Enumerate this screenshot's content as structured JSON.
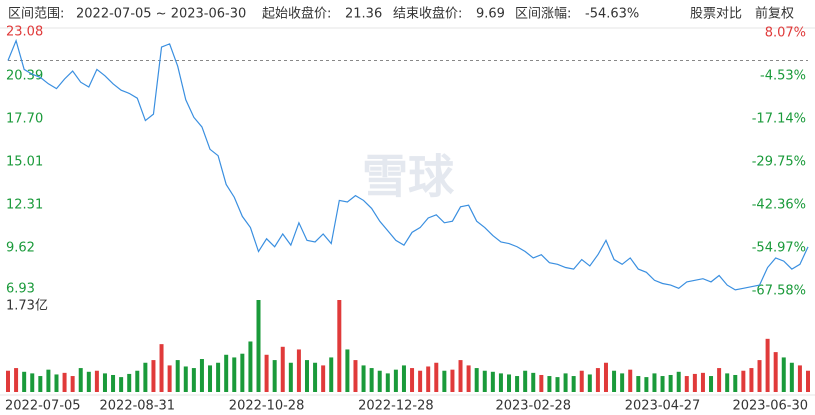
{
  "header": {
    "range_label": "区间范围:",
    "range": "2022-07-05 ~ 2023-06-30",
    "start_label": "起始收盘价:",
    "start_close": 21.36,
    "end_label": "结束收盘价:",
    "end_close": 9.69,
    "change_label": "区间涨幅:",
    "change": "-54.63%",
    "buttons": [
      "股票对比",
      "前复权"
    ]
  },
  "watermark": "雪球",
  "chart_data": [
    {
      "type": "line",
      "up_color": "#e03a3a",
      "down_color": "#1a9a3a",
      "series": [
        {
          "name": "收盘价",
          "color": "#3a8fe0",
          "values": [
            21.36,
            22.6,
            20.8,
            20.5,
            20.3,
            19.9,
            19.6,
            20.2,
            20.7,
            20.0,
            19.7,
            20.8,
            20.4,
            19.9,
            19.5,
            19.3,
            19.0,
            17.6,
            18.0,
            22.2,
            22.4,
            21.0,
            18.9,
            17.8,
            17.2,
            15.8,
            15.4,
            13.6,
            12.8,
            11.6,
            10.9,
            9.4,
            10.2,
            9.7,
            10.5,
            9.8,
            11.2,
            10.1,
            10.0,
            10.5,
            9.9,
            12.6,
            12.5,
            12.9,
            12.6,
            12.1,
            11.3,
            10.7,
            10.1,
            9.8,
            10.6,
            10.9,
            11.5,
            11.7,
            11.2,
            11.3,
            12.2,
            12.3,
            11.3,
            10.9,
            10.4,
            10.0,
            9.9,
            9.7,
            9.4,
            9.0,
            9.2,
            8.7,
            8.6,
            8.4,
            8.3,
            8.9,
            8.5,
            9.2,
            10.1,
            8.9,
            8.6,
            9.0,
            8.3,
            8.1,
            7.6,
            7.4,
            7.3,
            7.1,
            7.5,
            7.6,
            7.7,
            7.5,
            7.9,
            7.3,
            7.0,
            7.1,
            7.2,
            7.3,
            8.4,
            9.0,
            8.8,
            8.3,
            8.6,
            9.69
          ]
        }
      ],
      "ylim": [
        6.93,
        23.08
      ],
      "yticks": [
        23.08,
        20.39,
        17.7,
        15.01,
        12.31,
        9.62,
        6.93
      ],
      "yticks_labels": [
        "23.08",
        "20.39",
        "17.70",
        "15.01",
        "12.31",
        "9.62",
        "6.93"
      ],
      "y2lim": [
        -67.58,
        8.07
      ],
      "y2ticks": [
        {
          "value": 8.07,
          "label": "8.07%"
        },
        {
          "value": -4.53,
          "label": "-4.53%"
        },
        {
          "value": -17.14,
          "label": "-17.14%"
        },
        {
          "value": -29.75,
          "label": "-29.75%"
        },
        {
          "value": -42.36,
          "label": "-42.36%"
        },
        {
          "value": -54.97,
          "label": "-54.97%"
        },
        {
          "value": -67.58,
          "label": "-67.58%"
        }
      ],
      "xlim": [
        0,
        99
      ],
      "xticks": [
        {
          "value": 0,
          "label": "2022-07-05"
        },
        {
          "value": 16,
          "label": "2022-08-31"
        },
        {
          "value": 32,
          "label": "2022-10-28"
        },
        {
          "value": 48,
          "label": "2022-12-28"
        },
        {
          "value": 65,
          "label": "2023-02-28"
        },
        {
          "value": 81,
          "label": "2023-04-27"
        },
        {
          "value": 99,
          "label": "2023-06-30"
        }
      ]
    },
    {
      "type": "bar",
      "name": "成交量",
      "values": [
        0.4,
        0.45,
        0.38,
        0.35,
        0.3,
        0.42,
        0.33,
        0.36,
        0.3,
        0.45,
        0.38,
        0.4,
        0.35,
        0.32,
        0.28,
        0.34,
        0.4,
        0.55,
        0.6,
        0.9,
        0.5,
        0.6,
        0.48,
        0.45,
        0.62,
        0.5,
        0.55,
        0.7,
        0.65,
        0.72,
        0.95,
        1.73,
        0.7,
        0.6,
        0.85,
        0.55,
        0.8,
        0.6,
        0.55,
        0.5,
        0.65,
        1.73,
        0.8,
        0.6,
        0.5,
        0.45,
        0.4,
        0.35,
        0.42,
        0.5,
        0.45,
        0.4,
        0.48,
        0.55,
        0.4,
        0.42,
        0.6,
        0.5,
        0.45,
        0.4,
        0.38,
        0.35,
        0.33,
        0.3,
        0.4,
        0.36,
        0.32,
        0.3,
        0.28,
        0.35,
        0.3,
        0.4,
        0.33,
        0.45,
        0.55,
        0.4,
        0.35,
        0.42,
        0.3,
        0.28,
        0.35,
        0.3,
        0.32,
        0.38,
        0.3,
        0.34,
        0.36,
        0.3,
        0.45,
        0.35,
        0.32,
        0.4,
        0.45,
        0.6,
        1.0,
        0.75,
        0.65,
        0.55,
        0.5,
        0.4
      ],
      "ylim": [
        0,
        1.73
      ],
      "yticks": [
        {
          "value": 1.73,
          "label": "1.73亿"
        }
      ]
    }
  ]
}
